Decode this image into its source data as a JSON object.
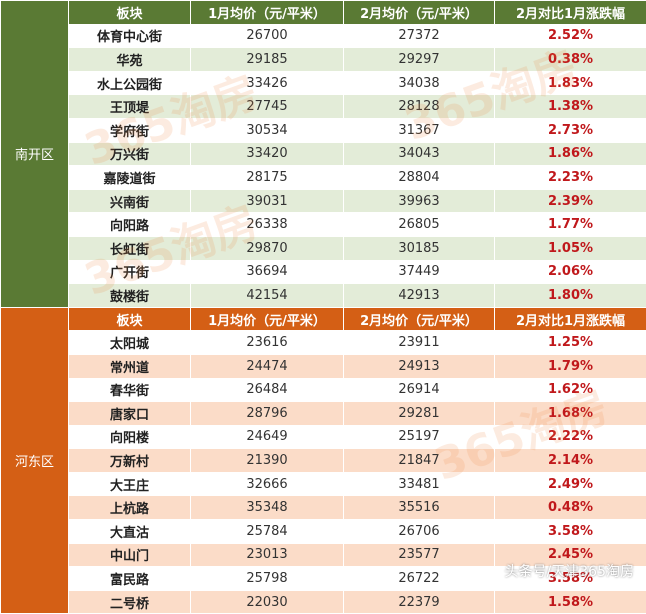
{
  "sections": [
    {
      "district": "南开区",
      "headers": [
        "板块",
        "1月均价（元/平米）",
        "2月均价（元/平米）",
        "2月对比1月涨跌幅"
      ],
      "rows": [
        {
          "name": "体育中心街",
          "jan": "26700",
          "feb": "27372",
          "change": "2.52%"
        },
        {
          "name": "华苑",
          "jan": "29185",
          "feb": "29297",
          "change": "0.38%"
        },
        {
          "name": "水上公园街",
          "jan": "33426",
          "feb": "34038",
          "change": "1.83%"
        },
        {
          "name": "王顶堤",
          "jan": "27745",
          "feb": "28128",
          "change": "1.38%"
        },
        {
          "name": "学府街",
          "jan": "30534",
          "feb": "31367",
          "change": "2.73%"
        },
        {
          "name": "万兴街",
          "jan": "33420",
          "feb": "34043",
          "change": "1.86%"
        },
        {
          "name": "嘉陵道街",
          "jan": "28175",
          "feb": "28804",
          "change": "2.23%"
        },
        {
          "name": "兴南街",
          "jan": "39031",
          "feb": "39963",
          "change": "2.39%"
        },
        {
          "name": "向阳路",
          "jan": "26338",
          "feb": "26805",
          "change": "1.77%"
        },
        {
          "name": "长虹街",
          "jan": "29870",
          "feb": "30185",
          "change": "1.05%"
        },
        {
          "name": "广开街",
          "jan": "36694",
          "feb": "37449",
          "change": "2.06%"
        },
        {
          "name": "鼓楼街",
          "jan": "42154",
          "feb": "42913",
          "change": "1.80%"
        }
      ]
    },
    {
      "district": "河东区",
      "headers": [
        "板块",
        "1月均价（元/平米）",
        "2月均价（元/平米）",
        "2月对比1月涨跌幅"
      ],
      "rows": [
        {
          "name": "太阳城",
          "jan": "23616",
          "feb": "23911",
          "change": "1.25%"
        },
        {
          "name": "常州道",
          "jan": "24474",
          "feb": "24913",
          "change": "1.79%"
        },
        {
          "name": "春华街",
          "jan": "26484",
          "feb": "26914",
          "change": "1.62%"
        },
        {
          "name": "唐家口",
          "jan": "28796",
          "feb": "29281",
          "change": "1.68%"
        },
        {
          "name": "向阳楼",
          "jan": "24649",
          "feb": "25197",
          "change": "2.22%"
        },
        {
          "name": "万新村",
          "jan": "21390",
          "feb": "21847",
          "change": "2.14%"
        },
        {
          "name": "大王庄",
          "jan": "32666",
          "feb": "33481",
          "change": "2.49%"
        },
        {
          "name": "上杭路",
          "jan": "35348",
          "feb": "35516",
          "change": "0.48%"
        },
        {
          "name": "大直沽",
          "jan": "25784",
          "feb": "26706",
          "change": "3.58%"
        },
        {
          "name": "中山门",
          "jan": "23013",
          "feb": "23577",
          "change": "2.45%"
        },
        {
          "name": "富民路",
          "jan": "25798",
          "feb": "26722",
          "change": "3.58%"
        },
        {
          "name": "二号桥",
          "jan": "22030",
          "feb": "22379",
          "change": "1.58%"
        }
      ]
    }
  ],
  "watermark": "头条号/天津365淘房",
  "logo_text": "365淘房",
  "colors": {
    "nankai": "#5a7a34",
    "hedong": "#d45f15",
    "increase": "#c0181b"
  }
}
